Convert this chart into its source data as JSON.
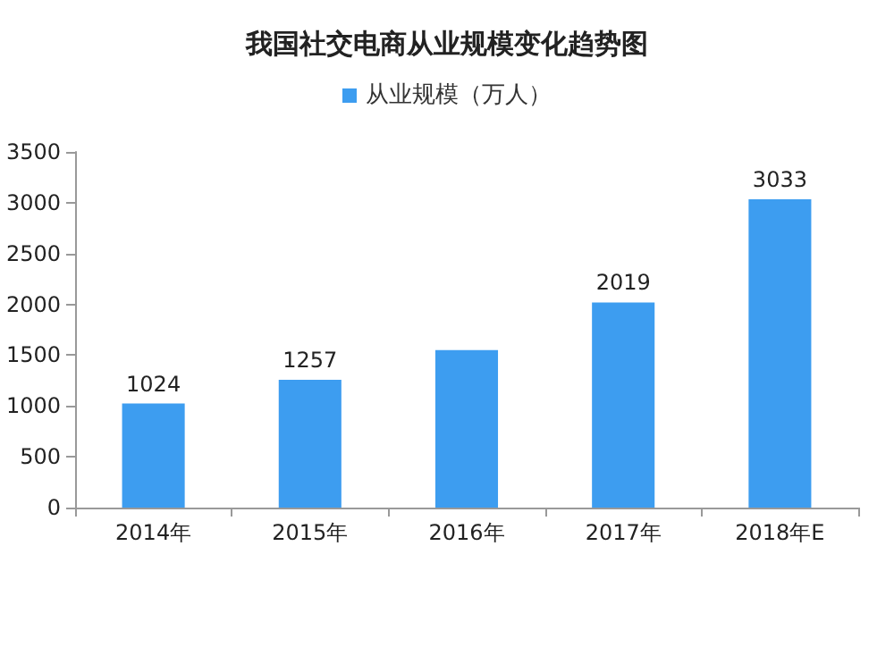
{
  "chart_data": {
    "type": "bar",
    "title": "我国社交电商从业规模变化趋势图",
    "categories": [
      "2014年",
      "2015年",
      "2016年",
      "2017年",
      "2018年E"
    ],
    "series": [
      {
        "name": "从业规模（万人）",
        "color": "#3d9df0",
        "values": [
          1024,
          1257,
          1550,
          2019,
          3033
        ],
        "value_labels": [
          "1024",
          "1257",
          null,
          "2019",
          "3033"
        ]
      }
    ],
    "ylim": [
      0,
      3500
    ],
    "yticks": [
      0,
      500,
      1000,
      1500,
      2000,
      2500,
      3000,
      3500
    ],
    "grid": false,
    "legend": "top"
  }
}
